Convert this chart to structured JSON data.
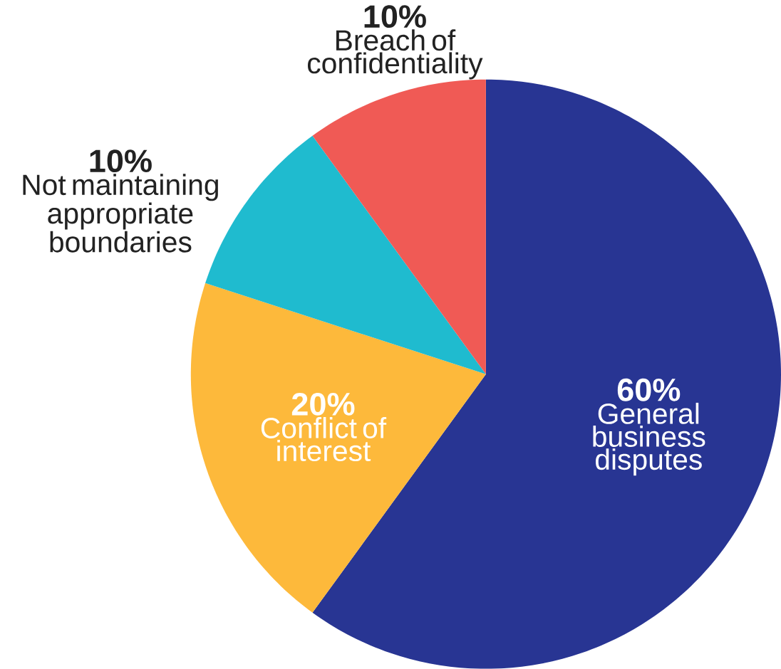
{
  "chart_data": {
    "type": "pie",
    "categories": [
      "General business disputes",
      "Conflict of interest",
      "Not maintaining appropriate boundaries",
      "Breach of confidentiality"
    ],
    "values": [
      60,
      20,
      10,
      10
    ],
    "colors": [
      "#283593",
      "#FDB93B",
      "#1FBBCF",
      "#F05A55"
    ],
    "value_labels": [
      "60%",
      "20%",
      "10%",
      "10%"
    ]
  }
}
